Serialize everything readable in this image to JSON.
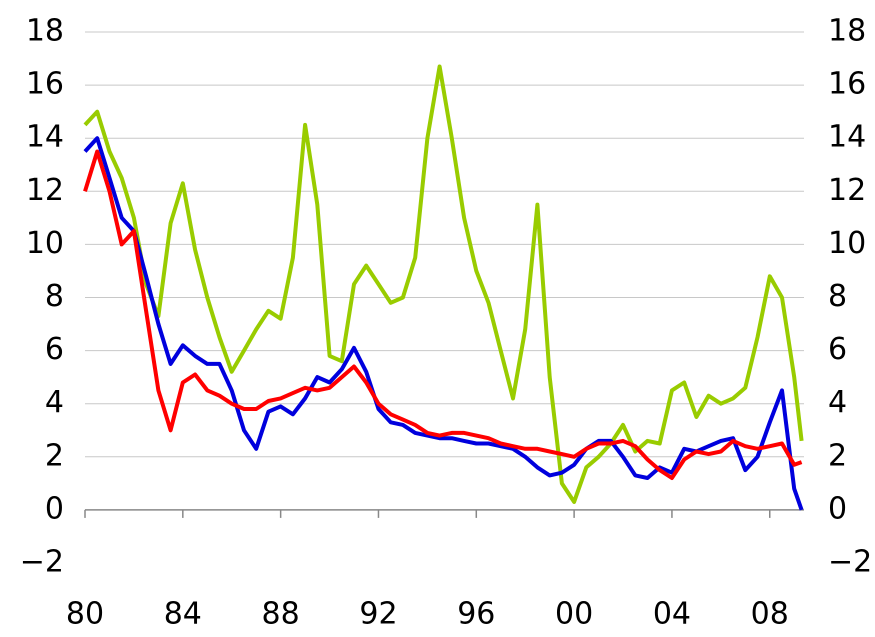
{
  "chart_data": {
    "type": "line",
    "x": [
      1980,
      1980.5,
      1981,
      1981.5,
      1982,
      1982.5,
      1983,
      1983.5,
      1984,
      1984.5,
      1985,
      1985.5,
      1986,
      1986.5,
      1987,
      1987.5,
      1988,
      1988.5,
      1989,
      1989.5,
      1990,
      1990.5,
      1991,
      1991.5,
      1992,
      1992.5,
      1993,
      1993.5,
      1994,
      1994.5,
      1995,
      1995.5,
      1996,
      1996.5,
      1997,
      1997.5,
      1998,
      1998.5,
      1999,
      1999.5,
      2000,
      2000.5,
      2001,
      2001.5,
      2002,
      2002.5,
      2003,
      2003.5,
      2004,
      2004.5,
      2005,
      2005.5,
      2006,
      2006.5,
      2007,
      2007.5,
      2008,
      2008.5,
      2009,
      2009.3
    ],
    "series": [
      {
        "color": "#99cc00",
        "values": [
          14.5,
          15,
          13.5,
          12.5,
          11,
          8.5,
          7.3,
          10.8,
          12.3,
          9.8,
          8,
          6.5,
          5.2,
          6.0,
          6.8,
          7.5,
          7.2,
          9.5,
          14.5,
          11.5,
          5.8,
          5.6,
          8.5,
          9.2,
          8.5,
          7.8,
          8.0,
          9.5,
          14.0,
          16.7,
          14,
          11,
          9,
          7.8,
          6.0,
          4.2,
          6.8,
          11.5,
          5.0,
          1.0,
          0.3,
          1.6,
          2.0,
          2.5,
          3.2,
          2.2,
          2.6,
          2.5,
          4.5,
          4.8,
          3.5,
          4.3,
          4.0,
          4.2,
          4.6,
          6.5,
          8.8,
          8.0,
          5.0,
          2.6
        ]
      },
      {
        "color": "#0000dd",
        "values": [
          13.5,
          14,
          12.5,
          11,
          10.5,
          8.8,
          7,
          5.5,
          6.2,
          5.8,
          5.5,
          5.5,
          4.5,
          3,
          2.3,
          3.7,
          3.9,
          3.6,
          4.2,
          5,
          4.8,
          5.3,
          6.1,
          5.2,
          3.8,
          3.3,
          3.2,
          2.9,
          2.8,
          2.7,
          2.7,
          2.6,
          2.5,
          2.5,
          2.4,
          2.3,
          2.0,
          1.6,
          1.3,
          1.4,
          1.7,
          2.3,
          2.6,
          2.6,
          2.0,
          1.3,
          1.2,
          1.6,
          1.4,
          2.3,
          2.2,
          2.4,
          2.6,
          2.7,
          1.5,
          2.0,
          3.3,
          4.5,
          0.8,
          0
        ]
      },
      {
        "color": "#ff0000",
        "values": [
          12,
          13.5,
          12,
          10,
          10.5,
          7.5,
          4.5,
          3.0,
          4.8,
          5.1,
          4.5,
          4.3,
          4.0,
          3.8,
          3.8,
          4.1,
          4.2,
          4.4,
          4.6,
          4.5,
          4.6,
          5.0,
          5.4,
          4.8,
          4.0,
          3.6,
          3.4,
          3.2,
          2.9,
          2.8,
          2.9,
          2.9,
          2.8,
          2.7,
          2.5,
          2.4,
          2.3,
          2.3,
          2.2,
          2.1,
          2.0,
          2.3,
          2.5,
          2.5,
          2.6,
          2.4,
          1.9,
          1.5,
          1.2,
          1.9,
          2.2,
          2.1,
          2.2,
          2.6,
          2.4,
          2.3,
          2.4,
          2.5,
          1.7,
          1.8
        ]
      }
    ],
    "xlim": [
      1980,
      2009.4
    ],
    "xticks": [
      {
        "value": 1980,
        "label": "80"
      },
      {
        "value": 1984,
        "label": "84"
      },
      {
        "value": 1988,
        "label": "88"
      },
      {
        "value": 1992,
        "label": "92"
      },
      {
        "value": 1996,
        "label": "96"
      },
      {
        "value": 2000,
        "label": "00"
      },
      {
        "value": 2004,
        "label": "04"
      },
      {
        "value": 2008,
        "label": "08"
      }
    ],
    "ylim": [
      -2,
      18
    ],
    "yticks": [
      {
        "value": -2,
        "label": "−2"
      },
      0,
      2,
      4,
      6,
      8,
      10,
      12,
      14,
      16,
      18
    ],
    "y2lim": [
      -2,
      18
    ],
    "y2ticks": [
      {
        "value": -2,
        "label": "−2"
      },
      0,
      2,
      4,
      6,
      8,
      10,
      12,
      14,
      16,
      18
    ],
    "grid": true
  }
}
